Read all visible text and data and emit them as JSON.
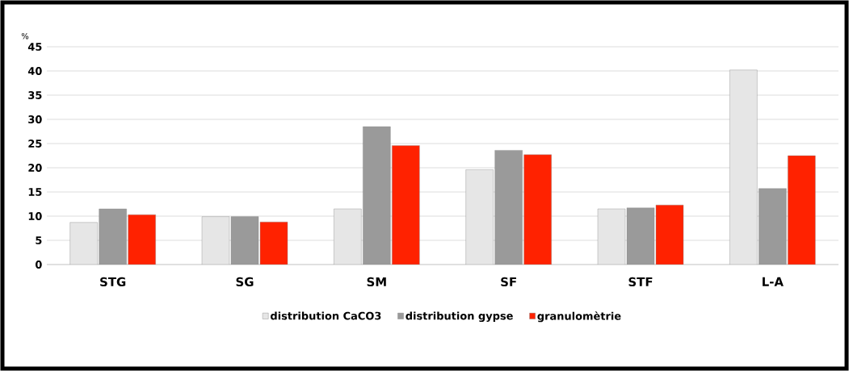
{
  "chart_data": {
    "type": "bar",
    "ylabel": "%",
    "categories": [
      "STG",
      "SG",
      "SM",
      "SF",
      "STF",
      "L-A"
    ],
    "series": [
      {
        "name": "distribution CaCO3",
        "color": "#e6e6e6",
        "values": [
          8.7,
          9.9,
          11.5,
          19.6,
          11.5,
          40.2
        ]
      },
      {
        "name": "distribution gypse",
        "color": "#9a9a9a",
        "values": [
          11.5,
          9.9,
          28.5,
          23.6,
          11.7,
          15.7
        ]
      },
      {
        "name": "granulomètrie",
        "color": "#ff2200",
        "values": [
          10.3,
          8.8,
          24.6,
          22.7,
          12.3,
          22.5
        ]
      }
    ],
    "ylim": [
      0,
      45
    ],
    "yticks": [
      0,
      5,
      10,
      15,
      20,
      25,
      30,
      35,
      40,
      45
    ],
    "grid": "y",
    "legend": "bottom"
  }
}
